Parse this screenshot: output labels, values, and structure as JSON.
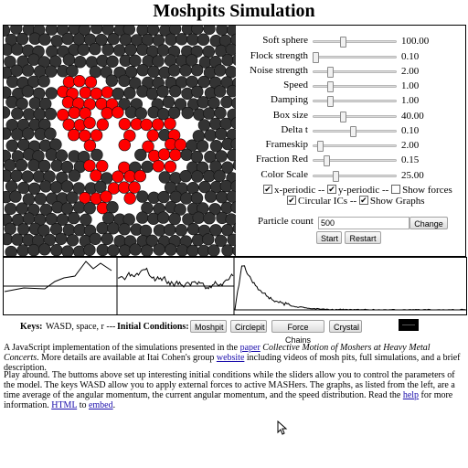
{
  "title": "Moshpits Simulation",
  "sliders": [
    {
      "label": "Soft sphere",
      "value": "100.00",
      "pos": 0.35
    },
    {
      "label": "Flock strength",
      "value": "0.10",
      "pos": 0.02
    },
    {
      "label": "Noise strength",
      "value": "2.00",
      "pos": 0.2
    },
    {
      "label": "Speed",
      "value": "1.00",
      "pos": 0.2
    },
    {
      "label": "Damping",
      "value": "1.00",
      "pos": 0.2
    },
    {
      "label": "Box size",
      "value": "40.00",
      "pos": 0.35
    },
    {
      "label": "Delta t",
      "value": "0.10",
      "pos": 0.47
    },
    {
      "label": "Frameskip",
      "value": "2.00",
      "pos": 0.08
    },
    {
      "label": "Fraction Red",
      "value": "0.15",
      "pos": 0.15
    },
    {
      "label": "Color Scale",
      "value": "25.00",
      "pos": 0.26
    }
  ],
  "checkboxes": {
    "x_periodic": {
      "label": "x-periodic --",
      "checked": true
    },
    "y_periodic": {
      "label": "y-periodic --",
      "checked": true
    },
    "show_forces": {
      "label": "Show forces",
      "checked": false
    },
    "circular_ics": {
      "label": "Circular ICs --",
      "checked": true
    },
    "show_graphs": {
      "label": "Show Graphs",
      "checked": true
    }
  },
  "particle_count": {
    "label": "Particle count",
    "value": "500",
    "change_label": "Change"
  },
  "buttons": {
    "start": "Start",
    "restart": "Restart"
  },
  "keys": {
    "keys_label": "Keys:",
    "keys_text": "WASD, space, r ---",
    "ic_label": "Initial Conditions:",
    "moshpit": "Moshpit",
    "circlepit": "Circlepit",
    "force_chains": "Force Chains",
    "crystal": "Crystal"
  },
  "desc1": {
    "t1": "A JavaScript implementation of the simulations presented in the ",
    "link1": "paper",
    "t2": " ",
    "italic": "Collective Motion of Moshers at Heavy Metal Concerts",
    "t3": ". More details are available at Itai Cohen's group ",
    "link2": "website",
    "t4": " including videos of mosh pits, full simulations, and a brief description."
  },
  "desc2": {
    "t1": "Play around. The buttoms above set up interesting initial conditions while the sliders allow you to control the parameters of the model. The keys WASD allow you to apply external forces to active MASHers. The graphs, as listed from the left, are a time average of the angular momentum, the current angular momentum, and the speed distribution. Read the ",
    "link1": "help",
    "t2": " for more information. ",
    "link2": "HTML",
    "t3": " to ",
    "link3": "embed",
    "t4": "."
  },
  "colors": {
    "red": "#ff0000",
    "gray": "#333333",
    "link": "#1a0dab"
  }
}
